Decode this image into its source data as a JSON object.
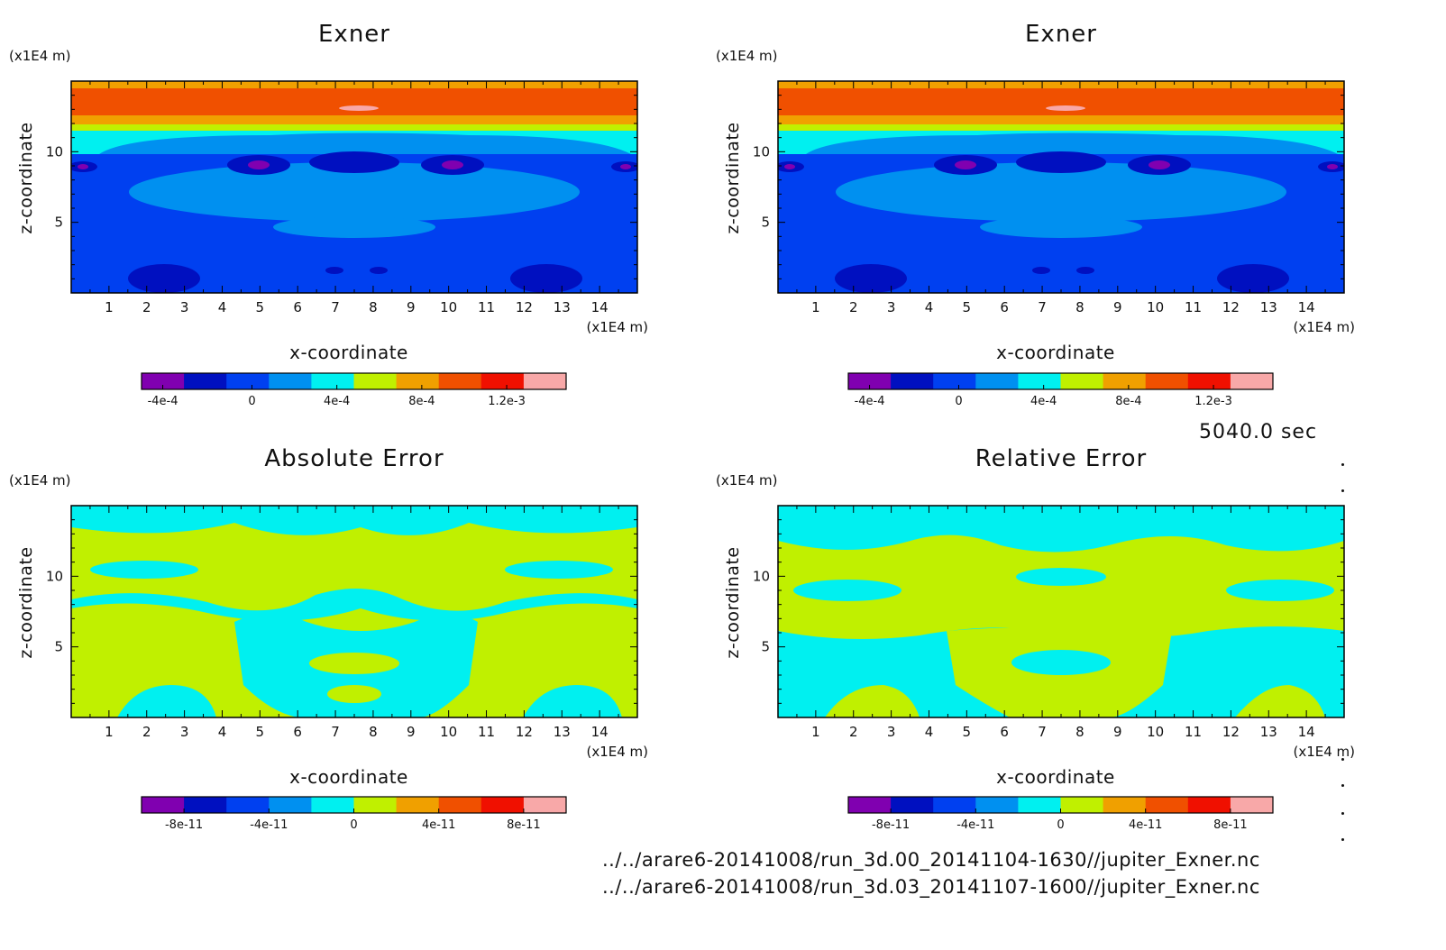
{
  "time_label": "5040.0 sec",
  "files": [
    "../../arare6-20141008/run_3d.00_20141104-1630//jupiter_Exner.nc",
    "../../arare6-20141008/run_3d.03_20141107-1600//jupiter_Exner.nc"
  ],
  "chart_data": [
    {
      "type": "heatmap",
      "title": "Exner",
      "xlabel": "x-coordinate",
      "ylabel": "z-coordinate",
      "x_unit": "(x1E4 m)",
      "y_unit": "(x1E4 m)",
      "xlim": [
        0,
        15
      ],
      "ylim": [
        0,
        15
      ],
      "x_ticks": [
        "1",
        "2",
        "3",
        "4",
        "5",
        "6",
        "7",
        "8",
        "9",
        "10",
        "11",
        "12",
        "13",
        "14"
      ],
      "y_ticks": [
        "5",
        "10"
      ],
      "colorbar": {
        "colors": [
          "#8000b0",
          "#0010c0",
          "#0040f0",
          "#0090f0",
          "#00f0f0",
          "#c0f000",
          "#f0a000",
          "#f05000",
          "#f01000",
          "#f8a8a8"
        ],
        "tick_labels": [
          "-4e-4",
          "0",
          "4e-4",
          "8e-4",
          "1.2e-3"
        ]
      },
      "levels": [
        {
          "z": [
            12,
            15
          ],
          "value": 0.001
        },
        {
          "z": [
            10.5,
            12
          ],
          "value": 0.00045
        },
        {
          "z": [
            0,
            10.5
          ],
          "value": 0
        }
      ]
    },
    {
      "type": "heatmap",
      "title": "Exner",
      "xlabel": "x-coordinate",
      "ylabel": "z-coordinate",
      "x_unit": "(x1E4 m)",
      "y_unit": "(x1E4 m)",
      "xlim": [
        0,
        15
      ],
      "ylim": [
        0,
        15
      ],
      "x_ticks": [
        "1",
        "2",
        "3",
        "4",
        "5",
        "6",
        "7",
        "8",
        "9",
        "10",
        "11",
        "12",
        "13",
        "14"
      ],
      "y_ticks": [
        "5",
        "10"
      ],
      "colorbar": {
        "colors": [
          "#8000b0",
          "#0010c0",
          "#0040f0",
          "#0090f0",
          "#00f0f0",
          "#c0f000",
          "#f0a000",
          "#f05000",
          "#f01000",
          "#f8a8a8"
        ],
        "tick_labels": [
          "-4e-4",
          "0",
          "4e-4",
          "8e-4",
          "1.2e-3"
        ]
      },
      "levels": [
        {
          "z": [
            12,
            15
          ],
          "value": 0.001
        },
        {
          "z": [
            10.5,
            12
          ],
          "value": 0.00045
        },
        {
          "z": [
            0,
            10.5
          ],
          "value": 0
        }
      ]
    },
    {
      "type": "heatmap",
      "title": "Absolute Error",
      "xlabel": "x-coordinate",
      "ylabel": "z-coordinate",
      "x_unit": "(x1E4 m)",
      "y_unit": "(x1E4 m)",
      "xlim": [
        0,
        15
      ],
      "ylim": [
        0,
        15
      ],
      "x_ticks": [
        "1",
        "2",
        "3",
        "4",
        "5",
        "6",
        "7",
        "8",
        "9",
        "10",
        "11",
        "12",
        "13",
        "14"
      ],
      "y_ticks": [
        "5",
        "10"
      ],
      "colorbar": {
        "colors": [
          "#8000b0",
          "#0010c0",
          "#0040f0",
          "#0090f0",
          "#00f0f0",
          "#c0f000",
          "#f0a000",
          "#f05000",
          "#f01000",
          "#f8a8a8"
        ],
        "tick_labels": [
          "-8e-11",
          "-4e-11",
          "0",
          "4e-11",
          "8e-11"
        ]
      },
      "levels": [
        {
          "value_range": [
            -2e-11,
            0
          ],
          "color": "#00f0f0"
        },
        {
          "value_range": [
            0,
            2e-11
          ],
          "color": "#c0f000"
        }
      ]
    },
    {
      "type": "heatmap",
      "title": "Relative Error",
      "xlabel": "x-coordinate",
      "ylabel": "z-coordinate",
      "x_unit": "(x1E4 m)",
      "y_unit": "(x1E4 m)",
      "xlim": [
        0,
        15
      ],
      "ylim": [
        0,
        15
      ],
      "x_ticks": [
        "1",
        "2",
        "3",
        "4",
        "5",
        "6",
        "7",
        "8",
        "9",
        "10",
        "11",
        "12",
        "13",
        "14"
      ],
      "y_ticks": [
        "5",
        "10"
      ],
      "colorbar": {
        "colors": [
          "#8000b0",
          "#0010c0",
          "#0040f0",
          "#0090f0",
          "#00f0f0",
          "#c0f000",
          "#f0a000",
          "#f05000",
          "#f01000",
          "#f8a8a8"
        ],
        "tick_labels": [
          "-8e-11",
          "-4e-11",
          "0",
          "4e-11",
          "8e-11"
        ]
      },
      "levels": [
        {
          "value_range": [
            -2e-11,
            0
          ],
          "color": "#00f0f0"
        },
        {
          "value_range": [
            0,
            2e-11
          ],
          "color": "#c0f000"
        }
      ]
    }
  ]
}
